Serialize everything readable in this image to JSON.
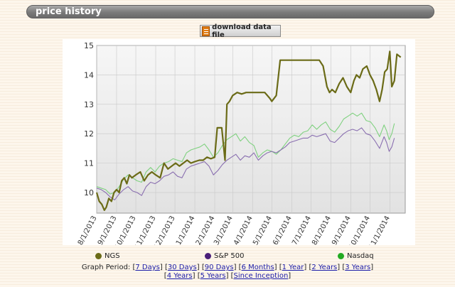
{
  "header": {
    "title": "price history"
  },
  "download": {
    "label": "download data file",
    "icon": "spreadsheet-icon"
  },
  "legend": [
    {
      "name": "NGS",
      "color": "#6b6b17"
    },
    {
      "name": "S&P 500",
      "color": "#4a1f7a"
    },
    {
      "name": "Nasdaq",
      "color": "#22aa22"
    }
  ],
  "graph_period": {
    "label": "Graph Period:",
    "links": [
      "7 Days",
      "30 Days",
      "90 Days",
      "6 Months",
      "1 Year",
      "2 Years",
      "3 Years",
      "4 Years",
      "5 Years",
      "Since Inception"
    ]
  },
  "chart_data": {
    "type": "line",
    "title": "",
    "xlabel": "",
    "ylabel": "",
    "xlim": [
      "2013-08-01",
      "2014-11-25"
    ],
    "ylim": [
      9.3,
      15
    ],
    "x_ticks": [
      "8/1/2013",
      "9/1/2013",
      "10/1/2013",
      "11/1/2013",
      "12/1/2013",
      "1/1/2014",
      "2/1/2014",
      "3/1/2014",
      "4/1/2014",
      "5/1/2014",
      "6/1/2014",
      "7/1/2014",
      "8/1/2014",
      "9/1/2014",
      "10/1/2014",
      "11/1/2014"
    ],
    "y_ticks": [
      10,
      11,
      12,
      13,
      14,
      15
    ],
    "grid": true,
    "legend_position": "bottom",
    "series": [
      {
        "name": "NGS",
        "color": "#6b6b17",
        "points": [
          [
            "2013-08-01",
            10.0
          ],
          [
            "2013-08-05",
            9.7
          ],
          [
            "2013-08-09",
            9.6
          ],
          [
            "2013-08-13",
            9.4
          ],
          [
            "2013-08-16",
            9.5
          ],
          [
            "2013-08-20",
            9.8
          ],
          [
            "2013-08-24",
            9.7
          ],
          [
            "2013-08-28",
            10.0
          ],
          [
            "2013-09-01",
            10.1
          ],
          [
            "2013-09-05",
            10.0
          ],
          [
            "2013-09-09",
            10.4
          ],
          [
            "2013-09-13",
            10.5
          ],
          [
            "2013-09-17",
            10.3
          ],
          [
            "2013-09-21",
            10.6
          ],
          [
            "2013-09-25",
            10.5
          ],
          [
            "2013-10-01",
            10.6
          ],
          [
            "2013-10-08",
            10.7
          ],
          [
            "2013-10-14",
            10.4
          ],
          [
            "2013-10-20",
            10.6
          ],
          [
            "2013-10-26",
            10.7
          ],
          [
            "2013-11-01",
            10.6
          ],
          [
            "2013-11-08",
            10.5
          ],
          [
            "2013-11-14",
            11.0
          ],
          [
            "2013-11-20",
            10.8
          ],
          [
            "2013-11-26",
            10.9
          ],
          [
            "2013-12-02",
            11.0
          ],
          [
            "2013-12-08",
            10.9
          ],
          [
            "2013-12-14",
            11.0
          ],
          [
            "2013-12-20",
            11.1
          ],
          [
            "2013-12-26",
            11.0
          ],
          [
            "2014-01-01",
            11.05
          ],
          [
            "2014-01-08",
            11.1
          ],
          [
            "2014-01-14",
            11.1
          ],
          [
            "2014-01-20",
            11.2
          ],
          [
            "2014-01-26",
            11.15
          ],
          [
            "2014-02-01",
            11.2
          ],
          [
            "2014-02-05",
            12.2
          ],
          [
            "2014-02-12",
            12.2
          ],
          [
            "2014-02-17",
            11.1
          ],
          [
            "2014-02-20",
            13.0
          ],
          [
            "2014-02-24",
            13.1
          ],
          [
            "2014-03-01",
            13.3
          ],
          [
            "2014-03-08",
            13.4
          ],
          [
            "2014-03-15",
            13.35
          ],
          [
            "2014-03-22",
            13.4
          ],
          [
            "2014-04-01",
            13.4
          ],
          [
            "2014-04-10",
            13.4
          ],
          [
            "2014-04-20",
            13.4
          ],
          [
            "2014-04-28",
            13.2
          ],
          [
            "2014-05-01",
            13.1
          ],
          [
            "2014-05-08",
            13.3
          ],
          [
            "2014-05-14",
            14.5
          ],
          [
            "2014-05-24",
            14.5
          ],
          [
            "2014-06-05",
            14.5
          ],
          [
            "2014-06-18",
            14.5
          ],
          [
            "2014-07-01",
            14.5
          ],
          [
            "2014-07-14",
            14.5
          ],
          [
            "2014-07-20",
            14.3
          ],
          [
            "2014-07-26",
            13.6
          ],
          [
            "2014-07-30",
            13.4
          ],
          [
            "2014-08-03",
            13.5
          ],
          [
            "2014-08-08",
            13.4
          ],
          [
            "2014-08-14",
            13.7
          ],
          [
            "2014-08-20",
            13.9
          ],
          [
            "2014-08-26",
            13.6
          ],
          [
            "2014-09-01",
            13.4
          ],
          [
            "2014-09-06",
            13.8
          ],
          [
            "2014-09-10",
            14.0
          ],
          [
            "2014-09-15",
            13.9
          ],
          [
            "2014-09-20",
            14.2
          ],
          [
            "2014-09-26",
            14.3
          ],
          [
            "2014-10-01",
            14.0
          ],
          [
            "2014-10-06",
            13.8
          ],
          [
            "2014-10-11",
            13.5
          ],
          [
            "2014-10-16",
            13.1
          ],
          [
            "2014-10-20",
            13.5
          ],
          [
            "2014-10-24",
            14.1
          ],
          [
            "2014-10-28",
            14.2
          ],
          [
            "2014-11-01",
            14.8
          ],
          [
            "2014-11-04",
            13.6
          ],
          [
            "2014-11-08",
            13.8
          ],
          [
            "2014-11-12",
            14.7
          ],
          [
            "2014-11-18",
            14.6
          ]
        ]
      },
      {
        "name": "S&P 500",
        "color": "#8a6fb0",
        "points": [
          [
            "2013-08-01",
            10.15
          ],
          [
            "2013-08-08",
            10.1
          ],
          [
            "2013-08-15",
            10.0
          ],
          [
            "2013-08-22",
            9.85
          ],
          [
            "2013-08-29",
            9.75
          ],
          [
            "2013-09-05",
            9.95
          ],
          [
            "2013-09-12",
            10.1
          ],
          [
            "2013-09-19",
            10.2
          ],
          [
            "2013-09-26",
            10.05
          ],
          [
            "2013-10-03",
            10.0
          ],
          [
            "2013-10-10",
            9.9
          ],
          [
            "2013-10-17",
            10.2
          ],
          [
            "2013-10-24",
            10.35
          ],
          [
            "2013-10-31",
            10.3
          ],
          [
            "2013-11-07",
            10.4
          ],
          [
            "2013-11-14",
            10.55
          ],
          [
            "2013-11-21",
            10.6
          ],
          [
            "2013-11-28",
            10.7
          ],
          [
            "2013-12-05",
            10.55
          ],
          [
            "2013-12-12",
            10.5
          ],
          [
            "2013-12-19",
            10.8
          ],
          [
            "2013-12-26",
            10.9
          ],
          [
            "2014-01-02",
            10.95
          ],
          [
            "2014-01-09",
            11.0
          ],
          [
            "2014-01-16",
            11.05
          ],
          [
            "2014-01-23",
            10.9
          ],
          [
            "2014-01-30",
            10.6
          ],
          [
            "2014-02-06",
            10.75
          ],
          [
            "2014-02-13",
            10.95
          ],
          [
            "2014-02-20",
            11.1
          ],
          [
            "2014-02-27",
            11.2
          ],
          [
            "2014-03-06",
            11.3
          ],
          [
            "2014-03-13",
            11.1
          ],
          [
            "2014-03-20",
            11.25
          ],
          [
            "2014-03-27",
            11.2
          ],
          [
            "2014-04-03",
            11.35
          ],
          [
            "2014-04-10",
            11.1
          ],
          [
            "2014-04-17",
            11.25
          ],
          [
            "2014-04-24",
            11.35
          ],
          [
            "2014-05-01",
            11.4
          ],
          [
            "2014-05-08",
            11.35
          ],
          [
            "2014-05-15",
            11.45
          ],
          [
            "2014-05-22",
            11.55
          ],
          [
            "2014-05-29",
            11.7
          ],
          [
            "2014-06-05",
            11.75
          ],
          [
            "2014-06-12",
            11.8
          ],
          [
            "2014-06-19",
            11.85
          ],
          [
            "2014-06-26",
            11.85
          ],
          [
            "2014-07-03",
            11.95
          ],
          [
            "2014-07-10",
            11.9
          ],
          [
            "2014-07-17",
            11.95
          ],
          [
            "2014-07-24",
            12.0
          ],
          [
            "2014-07-31",
            11.75
          ],
          [
            "2014-08-07",
            11.7
          ],
          [
            "2014-08-14",
            11.85
          ],
          [
            "2014-08-21",
            12.0
          ],
          [
            "2014-08-28",
            12.1
          ],
          [
            "2014-09-04",
            12.15
          ],
          [
            "2014-09-11",
            12.1
          ],
          [
            "2014-09-18",
            12.2
          ],
          [
            "2014-09-25",
            12.0
          ],
          [
            "2014-10-02",
            11.95
          ],
          [
            "2014-10-09",
            11.75
          ],
          [
            "2014-10-16",
            11.5
          ],
          [
            "2014-10-23",
            11.9
          ],
          [
            "2014-10-27",
            11.7
          ],
          [
            "2014-10-31",
            11.4
          ],
          [
            "2014-11-04",
            11.55
          ],
          [
            "2014-11-08",
            11.85
          ]
        ]
      },
      {
        "name": "Nasdaq",
        "color": "#7fd17f",
        "points": [
          [
            "2013-08-01",
            10.2
          ],
          [
            "2013-08-08",
            10.15
          ],
          [
            "2013-08-15",
            10.1
          ],
          [
            "2013-08-22",
            9.95
          ],
          [
            "2013-08-29",
            10.0
          ],
          [
            "2013-09-05",
            10.2
          ],
          [
            "2013-09-12",
            10.45
          ],
          [
            "2013-09-19",
            10.6
          ],
          [
            "2013-09-26",
            10.5
          ],
          [
            "2013-10-03",
            10.4
          ],
          [
            "2013-10-10",
            10.35
          ],
          [
            "2013-10-17",
            10.7
          ],
          [
            "2013-10-24",
            10.85
          ],
          [
            "2013-10-31",
            10.7
          ],
          [
            "2013-11-07",
            10.9
          ],
          [
            "2013-11-14",
            11.0
          ],
          [
            "2013-11-21",
            11.05
          ],
          [
            "2013-11-28",
            11.15
          ],
          [
            "2013-12-05",
            11.1
          ],
          [
            "2013-12-12",
            11.05
          ],
          [
            "2013-12-19",
            11.35
          ],
          [
            "2013-12-26",
            11.45
          ],
          [
            "2014-01-02",
            11.5
          ],
          [
            "2014-01-09",
            11.55
          ],
          [
            "2014-01-16",
            11.65
          ],
          [
            "2014-01-23",
            11.45
          ],
          [
            "2014-01-30",
            11.2
          ],
          [
            "2014-02-06",
            11.35
          ],
          [
            "2014-02-13",
            11.6
          ],
          [
            "2014-02-20",
            11.8
          ],
          [
            "2014-02-27",
            11.9
          ],
          [
            "2014-03-06",
            12.0
          ],
          [
            "2014-03-13",
            11.75
          ],
          [
            "2014-03-20",
            11.9
          ],
          [
            "2014-03-27",
            11.7
          ],
          [
            "2014-04-03",
            11.6
          ],
          [
            "2014-04-10",
            11.2
          ],
          [
            "2014-04-17",
            11.35
          ],
          [
            "2014-04-24",
            11.45
          ],
          [
            "2014-05-01",
            11.4
          ],
          [
            "2014-05-08",
            11.3
          ],
          [
            "2014-05-15",
            11.45
          ],
          [
            "2014-05-22",
            11.65
          ],
          [
            "2014-05-29",
            11.85
          ],
          [
            "2014-06-05",
            11.95
          ],
          [
            "2014-06-12",
            11.9
          ],
          [
            "2014-06-19",
            12.05
          ],
          [
            "2014-06-26",
            12.1
          ],
          [
            "2014-07-03",
            12.3
          ],
          [
            "2014-07-10",
            12.15
          ],
          [
            "2014-07-17",
            12.3
          ],
          [
            "2014-07-24",
            12.4
          ],
          [
            "2014-07-31",
            12.15
          ],
          [
            "2014-08-07",
            12.05
          ],
          [
            "2014-08-14",
            12.25
          ],
          [
            "2014-08-21",
            12.5
          ],
          [
            "2014-08-28",
            12.6
          ],
          [
            "2014-09-04",
            12.7
          ],
          [
            "2014-09-11",
            12.6
          ],
          [
            "2014-09-18",
            12.7
          ],
          [
            "2014-09-25",
            12.45
          ],
          [
            "2014-10-02",
            12.4
          ],
          [
            "2014-10-09",
            12.2
          ],
          [
            "2014-10-16",
            11.9
          ],
          [
            "2014-10-23",
            12.3
          ],
          [
            "2014-10-27",
            12.1
          ],
          [
            "2014-10-31",
            11.8
          ],
          [
            "2014-11-04",
            12.0
          ],
          [
            "2014-11-08",
            12.35
          ]
        ]
      }
    ]
  }
}
